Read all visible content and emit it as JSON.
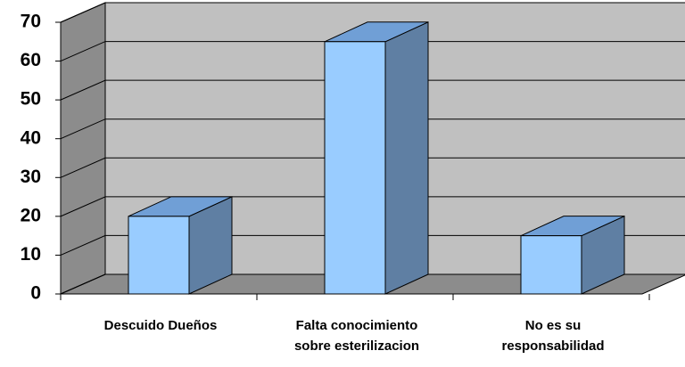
{
  "chart_data": {
    "type": "bar",
    "categories": [
      "Descuido Dueños",
      "Falta  conocimiento sobre esterilizacion",
      "No es su responsabilidad"
    ],
    "values": [
      20,
      65,
      15
    ],
    "color": "#99ccff",
    "ylim": [
      0,
      70
    ],
    "yticks": [
      0,
      10,
      20,
      30,
      40,
      50,
      60,
      70
    ],
    "grid": true
  }
}
